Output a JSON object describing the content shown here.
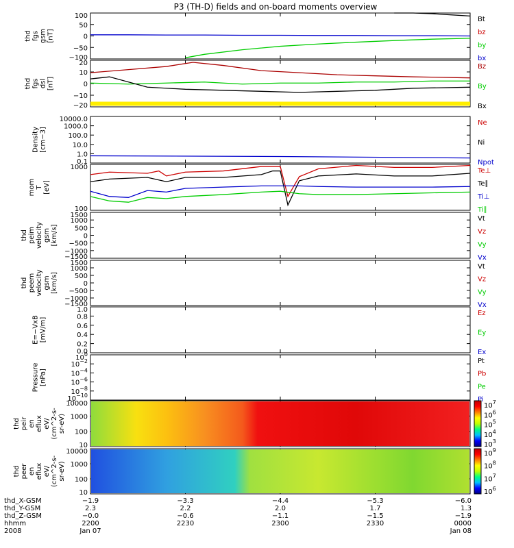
{
  "title": "P3 (TH-D) fields and on-board moments overview",
  "chart_data": [
    {
      "type": "line",
      "panel": "fgs-gsm-mag",
      "ylabel_lines": [
        "thd",
        "fgs",
        "gsm",
        "[nT]"
      ],
      "ylim": [
        -100,
        100
      ],
      "yticks": [
        "100",
        "50",
        "0",
        "−50",
        "−100"
      ],
      "legend": [
        {
          "label": "Bt",
          "color": "#000000"
        },
        {
          "label": "bz",
          "color": "#cc0000"
        },
        {
          "label": "by",
          "color": "#00cc00"
        },
        {
          "label": "bx",
          "color": "#0000cc"
        }
      ],
      "series": [
        {
          "name": "Bt",
          "color": "#000000",
          "x": [
            0.8,
            0.85,
            0.9,
            0.95,
            1.0
          ],
          "values": [
            102,
            100,
            97,
            92,
            87
          ]
        },
        {
          "name": "by",
          "color": "#00cc00",
          "x": [
            0.25,
            0.3,
            0.4,
            0.5,
            0.6,
            0.7,
            0.8,
            0.9,
            1.0
          ],
          "values": [
            -95,
            -80,
            -60,
            -45,
            -35,
            -27,
            -20,
            -14,
            -10
          ]
        },
        {
          "name": "bx",
          "color": "#0000cc",
          "x": [
            0,
            0.1,
            0.2,
            0.3,
            0.4,
            0.5,
            0.6,
            0.7,
            0.8,
            0.9,
            1.0
          ],
          "values": [
            5,
            5,
            4,
            4,
            3,
            3,
            2,
            2,
            1,
            1,
            0
          ]
        }
      ]
    },
    {
      "type": "line",
      "panel": "fgs-dsl-mag",
      "ylabel_lines": [
        "thd",
        "fgs",
        "dsl",
        "[nT]"
      ],
      "ylim": [
        -25,
        20
      ],
      "yticks": [
        "20",
        "10",
        "0",
        "−10",
        "−20"
      ],
      "legend": [
        {
          "label": "Bz",
          "color": "#aa0000"
        },
        {
          "label": "By",
          "color": "#00cc00"
        },
        {
          "label": "Bx",
          "color": "#000000"
        }
      ],
      "flag_band": {
        "color": "#ffee00",
        "value": -22
      },
      "series": [
        {
          "name": "Bz",
          "color": "#aa0000",
          "x": [
            0,
            0.1,
            0.2,
            0.27,
            0.35,
            0.45,
            0.55,
            0.65,
            0.75,
            0.85,
            1.0
          ],
          "values": [
            8,
            11,
            14,
            18,
            15,
            10,
            8,
            6,
            5,
            4,
            3
          ]
        },
        {
          "name": "By",
          "color": "#00cc00",
          "x": [
            0,
            0.1,
            0.2,
            0.3,
            0.4,
            0.5,
            0.6,
            0.7,
            0.8,
            0.9,
            1.0
          ],
          "values": [
            -2,
            -3,
            -2,
            -1,
            -3,
            -2,
            -2,
            -1,
            -1,
            0,
            0
          ]
        },
        {
          "name": "Bx",
          "color": "#000000",
          "x": [
            0,
            0.05,
            0.15,
            0.25,
            0.35,
            0.45,
            0.55,
            0.65,
            0.75,
            0.85,
            1.0
          ],
          "values": [
            2,
            4,
            -6,
            -8,
            -9,
            -10,
            -11,
            -10,
            -9,
            -7,
            -6
          ]
        }
      ]
    },
    {
      "type": "line",
      "panel": "density",
      "ylabel_lines": [
        "Density",
        "[cm−3]"
      ],
      "yscale": "log",
      "ylim": [
        0.1,
        10000
      ],
      "yticks": [
        "10000.0",
        "1000.0",
        "100.0",
        "10.0",
        "1.0",
        "0.1"
      ],
      "legend": [
        {
          "label": "Ne",
          "color": "#cc0000"
        },
        {
          "label": "Ni",
          "color": "#000000"
        },
        {
          "label": "Npot",
          "color": "#0000cc"
        }
      ],
      "series": [
        {
          "name": "Npot",
          "color": "#0000cc",
          "x": [
            0,
            0.5,
            1.0
          ],
          "values": [
            0.6,
            0.5,
            0.35
          ]
        }
      ]
    },
    {
      "type": "line",
      "panel": "mom-temperature",
      "ylabel_lines": [
        "mom",
        "T",
        "[eV]"
      ],
      "yscale": "log",
      "ylim": [
        100,
        1000
      ],
      "yticks": [
        "1000",
        "100"
      ],
      "legend": [
        {
          "label": "Te⊥",
          "color": "#cc0000"
        },
        {
          "label": "Te∥",
          "color": "#000000"
        },
        {
          "label": "Ti⊥",
          "color": "#0000cc"
        },
        {
          "label": "Ti∥",
          "color": "#00cc00"
        }
      ],
      "series": [
        {
          "name": "Te⊥",
          "color": "#cc0000",
          "x": [
            0,
            0.05,
            0.15,
            0.18,
            0.2,
            0.25,
            0.35,
            0.45,
            0.48,
            0.5,
            0.52,
            0.55,
            0.6,
            0.7,
            0.8,
            0.9,
            1.0
          ],
          "values": [
            600,
            680,
            640,
            720,
            560,
            680,
            720,
            900,
            900,
            900,
            200,
            540,
            800,
            950,
            860,
            860,
            950
          ]
        },
        {
          "name": "Te∥",
          "color": "#000000",
          "x": [
            0,
            0.05,
            0.15,
            0.2,
            0.25,
            0.35,
            0.45,
            0.48,
            0.5,
            0.52,
            0.55,
            0.6,
            0.7,
            0.8,
            0.9,
            1.0
          ],
          "values": [
            420,
            480,
            520,
            420,
            520,
            520,
            600,
            720,
            720,
            130,
            440,
            560,
            620,
            560,
            560,
            640
          ]
        },
        {
          "name": "Ti⊥",
          "color": "#0000cc",
          "x": [
            0,
            0.05,
            0.1,
            0.15,
            0.2,
            0.25,
            0.35,
            0.45,
            0.5,
            0.55,
            0.6,
            0.7,
            0.8,
            0.9,
            1.0
          ],
          "values": [
            260,
            200,
            190,
            270,
            250,
            300,
            320,
            340,
            340,
            340,
            330,
            320,
            320,
            320,
            330
          ]
        },
        {
          "name": "Ti∥",
          "color": "#00cc00",
          "x": [
            0,
            0.05,
            0.1,
            0.15,
            0.2,
            0.25,
            0.35,
            0.45,
            0.5,
            0.55,
            0.6,
            0.7,
            0.8,
            0.9,
            1.0
          ],
          "values": [
            200,
            160,
            150,
            190,
            180,
            200,
            220,
            250,
            260,
            230,
            220,
            220,
            230,
            240,
            250
          ]
        }
      ]
    },
    {
      "type": "line",
      "panel": "peim-velocity",
      "ylabel_lines": [
        "thd",
        "peim",
        "velocity",
        "gsm",
        "[km/s]"
      ],
      "ylim": [
        -1500,
        1500
      ],
      "yticks": [
        "1500",
        "1000",
        "500",
        "0",
        "−500",
        "−1000",
        "−1500"
      ],
      "legend": [
        {
          "label": "Vt",
          "color": "#000000"
        },
        {
          "label": "Vz",
          "color": "#cc0000"
        },
        {
          "label": "Vy",
          "color": "#00cc00"
        },
        {
          "label": "Vx",
          "color": "#0000cc"
        }
      ],
      "series": []
    },
    {
      "type": "line",
      "panel": "peem-velocity",
      "ylabel_lines": [
        "thd",
        "peem",
        "velocity",
        "gsm",
        "[km/s]"
      ],
      "ylim": [
        -1500,
        1500
      ],
      "yticks": [
        "1500",
        "1000",
        "500",
        "0",
        "−500",
        "−1000",
        "−1500"
      ],
      "legend": [
        {
          "label": "Vt",
          "color": "#000000"
        },
        {
          "label": "Vz",
          "color": "#cc0000"
        },
        {
          "label": "Vy",
          "color": "#00cc00"
        },
        {
          "label": "Vx",
          "color": "#0000cc"
        }
      ],
      "series": []
    },
    {
      "type": "line",
      "panel": "e-field",
      "ylabel_lines": [
        "E=−VxB",
        "[mV/m]"
      ],
      "ylim": [
        0,
        1
      ],
      "yticks": [
        "1.0",
        "0.8",
        "0.6",
        "0.4",
        "0.2",
        "0.0"
      ],
      "legend": [
        {
          "label": "Ez",
          "color": "#cc0000"
        },
        {
          "label": "Ey",
          "color": "#00cc00"
        },
        {
          "label": "Ex",
          "color": "#0000cc"
        }
      ],
      "series": []
    },
    {
      "type": "line",
      "panel": "pressure",
      "ylabel_lines": [
        "Pressure",
        "[nPa]"
      ],
      "yscale": "log",
      "ytick_labels": [
        [
          "10",
          "0"
        ],
        [
          "10",
          "−2"
        ],
        [
          "10",
          "−4"
        ],
        [
          "10",
          "−6"
        ],
        [
          "10",
          "−8"
        ],
        [
          "10",
          "−10"
        ]
      ],
      "legend": [
        {
          "label": "Pt",
          "color": "#000000"
        },
        {
          "label": "Pb",
          "color": "#cc0000"
        },
        {
          "label": "Pe",
          "color": "#00cc00"
        },
        {
          "label": "Pi",
          "color": "#0000cc"
        }
      ],
      "series": []
    },
    {
      "type": "heatmap",
      "panel": "peir-energy-spectrogram",
      "ylabel_lines": [
        "thd",
        "peir",
        "en",
        "eflux",
        "eV/",
        "(cm^2-s-",
        "sr-eV)"
      ],
      "yscale": "log",
      "yticks": [
        "10000",
        "1000",
        "100",
        "10"
      ],
      "colorbar_ticks": [
        [
          "10",
          "7"
        ],
        [
          "10",
          "6"
        ],
        [
          "10",
          "5"
        ],
        [
          "10",
          "4"
        ],
        [
          "10",
          "3"
        ]
      ],
      "description_stops": [
        {
          "x": 0.0,
          "color": "#8fdc3c"
        },
        {
          "x": 0.12,
          "color": "#f8e010"
        },
        {
          "x": 0.2,
          "color": "#fcc010"
        },
        {
          "x": 0.3,
          "color": "#f89020"
        },
        {
          "x": 0.4,
          "color": "#f45a1c"
        },
        {
          "x": 0.44,
          "color": "#f01010"
        },
        {
          "x": 0.7,
          "color": "#e00808"
        },
        {
          "x": 1.0,
          "color": "#f22020"
        }
      ]
    },
    {
      "type": "heatmap",
      "panel": "peer-energy-spectrogram",
      "ylabel_lines": [
        "thd",
        "peer",
        "en",
        "eflux",
        "eV/",
        "(cm^2-s-",
        "sr-eV)"
      ],
      "yscale": "log",
      "yticks": [
        "10000",
        "1000",
        "100",
        "10"
      ],
      "colorbar_ticks": [
        [
          "10",
          "9"
        ],
        [
          "10",
          "8"
        ],
        [
          "10",
          "7"
        ],
        [
          "10",
          "6"
        ]
      ],
      "description_stops": [
        {
          "x": 0.0,
          "color": "#2050e0"
        },
        {
          "x": 0.2,
          "color": "#30a0e0"
        },
        {
          "x": 0.38,
          "color": "#30d0c0"
        },
        {
          "x": 0.42,
          "color": "#a0e040"
        },
        {
          "x": 0.6,
          "color": "#c8e830"
        },
        {
          "x": 0.85,
          "color": "#80d830"
        },
        {
          "x": 1.0,
          "color": "#b0e030"
        }
      ]
    }
  ],
  "x_axis": {
    "rows": [
      {
        "label": "thd_X-GSM",
        "values": [
          "−1.9",
          "−3.3",
          "−4.4",
          "−5.3",
          "−6.0"
        ]
      },
      {
        "label": "thd_Y-GSM",
        "values": [
          "2.3",
          "2.2",
          "2.0",
          "1.7",
          "1.3"
        ]
      },
      {
        "label": "thd_Z-GSM",
        "values": [
          "−0.0",
          "−0.6",
          "−1.1",
          "−1.5",
          "−1.9"
        ]
      },
      {
        "label": "hhmm",
        "values": [
          "2200",
          "2230",
          "2300",
          "2330",
          "0000"
        ]
      },
      {
        "label": "2008",
        "values": [
          "Jan 07",
          "",
          "",
          "",
          "Jan 08"
        ]
      }
    ]
  }
}
